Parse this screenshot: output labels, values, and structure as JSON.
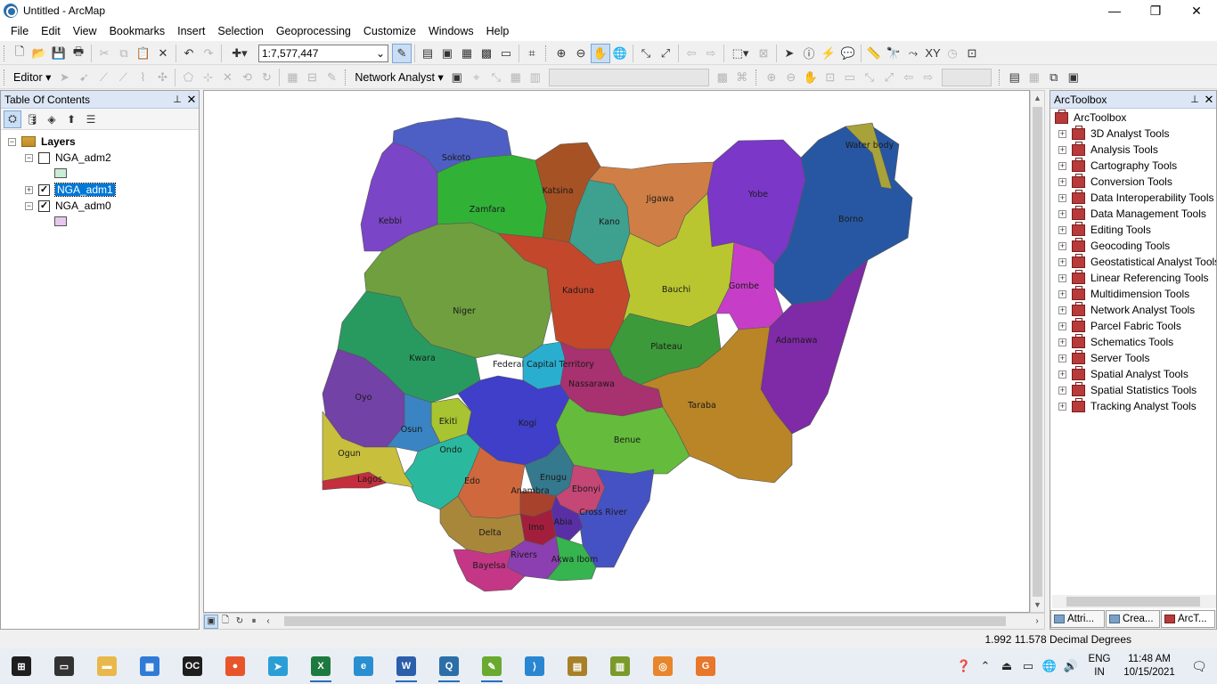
{
  "window": {
    "title": "Untitled - ArcMap",
    "controls": [
      "—",
      "❐",
      "✕"
    ]
  },
  "menu": [
    "File",
    "Edit",
    "View",
    "Bookmarks",
    "Insert",
    "Selection",
    "Geoprocessing",
    "Customize",
    "Windows",
    "Help"
  ],
  "toolbar": {
    "scale": "1:7,577,447",
    "editor_label": "Editor ▾",
    "network_analyst_label": "Network Analyst ▾"
  },
  "toc": {
    "title": "Table Of Contents",
    "root_label": "Layers",
    "layers": [
      {
        "name": "NGA_adm2",
        "checked": false,
        "swatch_color": "#c9ecd4"
      },
      {
        "name": "NGA_adm1",
        "checked": true,
        "selected": true
      },
      {
        "name": "NGA_adm0",
        "checked": true,
        "swatch_color": "#e8c7ee"
      }
    ]
  },
  "map": {
    "states": [
      {
        "name": "Sokoto",
        "color": "#4d5fc4"
      },
      {
        "name": "Kebbi",
        "color": "#7b45c8"
      },
      {
        "name": "Zamfara",
        "color": "#31b237"
      },
      {
        "name": "Katsina",
        "color": "#a75224"
      },
      {
        "name": "Kano",
        "color": "#3ea08f"
      },
      {
        "name": "Jigawa",
        "color": "#cf7f45"
      },
      {
        "name": "Yobe",
        "color": "#7a37c8"
      },
      {
        "name": "Borno",
        "color": "#2757a2"
      },
      {
        "name": "Water body",
        "color": "#a8a23a"
      },
      {
        "name": "Niger",
        "color": "#6f9f3e"
      },
      {
        "name": "Kaduna",
        "color": "#c3472b"
      },
      {
        "name": "Bauchi",
        "color": "#bac62f"
      },
      {
        "name": "Gombe",
        "color": "#c63ec8"
      },
      {
        "name": "Adamawa",
        "color": "#7f2aa7"
      },
      {
        "name": "Plateau",
        "color": "#3d9a3b"
      },
      {
        "name": "Kwara",
        "color": "#289a60"
      },
      {
        "name": "Federal Capital Territory",
        "color": "#2aaed0"
      },
      {
        "name": "Nassarawa",
        "color": "#a8316f"
      },
      {
        "name": "Taraba",
        "color": "#b98527"
      },
      {
        "name": "Oyo",
        "color": "#7242a6"
      },
      {
        "name": "Ekiti",
        "color": "#a8c431"
      },
      {
        "name": "Osun",
        "color": "#3a84c4"
      },
      {
        "name": "Kogi",
        "color": "#3f3fc9"
      },
      {
        "name": "Benue",
        "color": "#64bb3c"
      },
      {
        "name": "Ondo",
        "color": "#2ab99e"
      },
      {
        "name": "Ogun",
        "color": "#c8bf3d"
      },
      {
        "name": "Lagos",
        "color": "#c42e3d"
      },
      {
        "name": "Edo",
        "color": "#d0683e"
      },
      {
        "name": "Enugu",
        "color": "#34798d"
      },
      {
        "name": "Ebonyi",
        "color": "#c54776"
      },
      {
        "name": "Anambra",
        "color": "#a8422d"
      },
      {
        "name": "Cross River",
        "color": "#4552c3"
      },
      {
        "name": "Abia",
        "color": "#5a2fa6"
      },
      {
        "name": "Imo",
        "color": "#a31e3d"
      },
      {
        "name": "Delta",
        "color": "#a8873a"
      },
      {
        "name": "Rivers",
        "color": "#8b3fb0"
      },
      {
        "name": "Akwa Ibom",
        "color": "#35b44f"
      },
      {
        "name": "Bayelsa",
        "color": "#c43786"
      }
    ]
  },
  "arctoolbox": {
    "title": "ArcToolbox",
    "root_label": "ArcToolbox",
    "toolboxes": [
      "3D Analyst Tools",
      "Analysis Tools",
      "Cartography Tools",
      "Conversion Tools",
      "Data Interoperability Tools",
      "Data Management Tools",
      "Editing Tools",
      "Geocoding Tools",
      "Geostatistical Analyst Tools",
      "Linear Referencing Tools",
      "Multidimension Tools",
      "Network Analyst Tools",
      "Parcel Fabric Tools",
      "Schematics Tools",
      "Server Tools",
      "Spatial Analyst Tools",
      "Spatial Statistics Tools",
      "Tracking Analyst Tools"
    ],
    "tabs": [
      "Attri...",
      "Crea...",
      "ArcT..."
    ]
  },
  "status": {
    "coordinates": "1.992  11.578 Decimal Degrees"
  },
  "taskbar": {
    "language_line1": "ENG",
    "language_line2": "IN",
    "time": "11:48 AM",
    "date": "10/15/2021",
    "apps": [
      {
        "name": "start",
        "glyph": "⊞",
        "color": "#1e1e1e"
      },
      {
        "name": "task-view",
        "glyph": "▭",
        "color": "#333333"
      },
      {
        "name": "file-explorer",
        "glyph": "▬",
        "color": "#e8b84a"
      },
      {
        "name": "calendar",
        "glyph": "▦",
        "color": "#2f7bd6"
      },
      {
        "name": "oc",
        "glyph": "OC",
        "color": "#1e1e1e"
      },
      {
        "name": "firefox",
        "glyph": "●",
        "color": "#e8552b"
      },
      {
        "name": "telegram",
        "glyph": "➤",
        "color": "#2a9fd6"
      },
      {
        "name": "excel",
        "glyph": "X",
        "color": "#1d7a3f"
      },
      {
        "name": "edge",
        "glyph": "e",
        "color": "#2a8fd0"
      },
      {
        "name": "word",
        "glyph": "W",
        "color": "#2b5eab"
      },
      {
        "name": "arcmap",
        "glyph": "Q",
        "color": "#2b6ea8"
      },
      {
        "name": "arccatalog",
        "glyph": "✎",
        "color": "#6aaa2e"
      },
      {
        "name": "vscode",
        "glyph": "⟩",
        "color": "#2a86d0"
      },
      {
        "name": "winrar",
        "glyph": "▤",
        "color": "#a8802a"
      },
      {
        "name": "chart-app",
        "glyph": "▥",
        "color": "#7a9a2a"
      },
      {
        "name": "blender",
        "glyph": "◎",
        "color": "#e8862b"
      },
      {
        "name": "gallery",
        "glyph": "G",
        "color": "#e8762b"
      }
    ]
  }
}
